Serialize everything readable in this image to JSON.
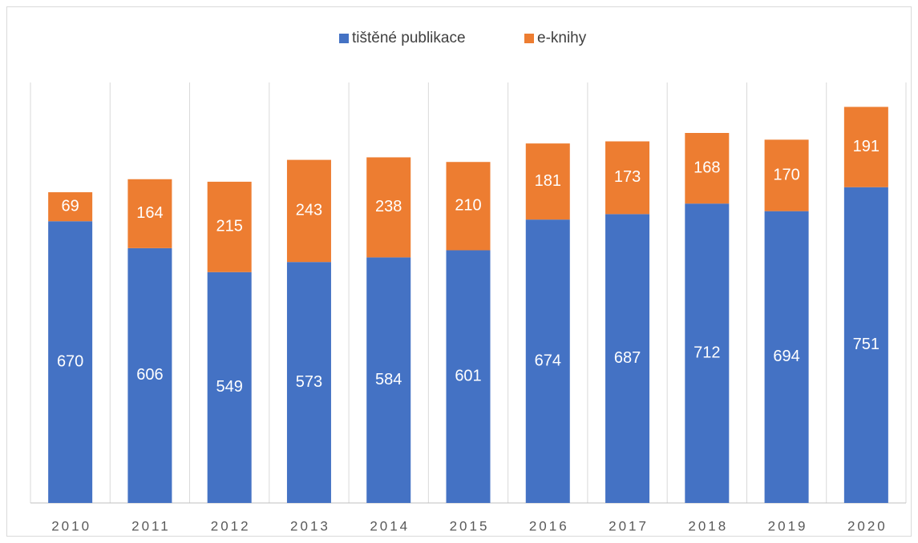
{
  "chart_data": {
    "type": "stacked_bar",
    "categories": [
      "2010",
      "2011",
      "2012",
      "2013",
      "2014",
      "2015",
      "2016",
      "2017",
      "2018",
      "2019",
      "2020"
    ],
    "series": [
      {
        "name": "tištěné publikace",
        "color": "#4472c4",
        "values": [
          670,
          606,
          549,
          573,
          584,
          601,
          674,
          687,
          712,
          694,
          751
        ]
      },
      {
        "name": "e-knihy",
        "color": "#ed7d31",
        "values": [
          69,
          164,
          215,
          243,
          238,
          210,
          181,
          173,
          168,
          170,
          191
        ]
      }
    ],
    "ylim": [
      0,
      1000
    ],
    "legend": "top"
  }
}
